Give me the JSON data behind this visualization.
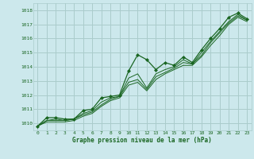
{
  "title": "Graphe pression niveau de la mer (hPa)",
  "bg_color": "#cce8ec",
  "grid_color": "#aacccc",
  "line_color": "#1a6622",
  "marker_color": "#1a6622",
  "text_color": "#1a6622",
  "xlim": [
    -0.5,
    23.5
  ],
  "ylim": [
    1009.5,
    1018.5
  ],
  "xticks": [
    0,
    1,
    2,
    3,
    4,
    5,
    6,
    7,
    8,
    9,
    10,
    11,
    12,
    13,
    14,
    15,
    16,
    17,
    18,
    19,
    20,
    21,
    22,
    23
  ],
  "yticks": [
    1010,
    1011,
    1012,
    1013,
    1014,
    1015,
    1016,
    1017,
    1018
  ],
  "series": [
    [
      1009.8,
      1010.4,
      1010.4,
      1010.3,
      1010.3,
      1010.9,
      1011.0,
      1011.8,
      1011.9,
      1012.0,
      1013.7,
      1014.85,
      1014.5,
      1013.8,
      1014.3,
      1014.1,
      1014.7,
      1014.3,
      1015.2,
      1016.0,
      1016.7,
      1017.5,
      1017.8,
      1017.4
    ],
    [
      1009.8,
      1010.2,
      1010.3,
      1010.2,
      1010.3,
      1010.7,
      1010.9,
      1011.5,
      1011.8,
      1011.9,
      1013.2,
      1013.5,
      1012.5,
      1013.5,
      1013.8,
      1014.0,
      1014.5,
      1014.2,
      1015.0,
      1015.8,
      1016.5,
      1017.2,
      1017.7,
      1017.3
    ],
    [
      1009.8,
      1010.2,
      1010.2,
      1010.2,
      1010.3,
      1010.6,
      1010.8,
      1011.3,
      1011.7,
      1011.9,
      1012.9,
      1013.1,
      1012.4,
      1013.3,
      1013.6,
      1013.9,
      1014.3,
      1014.2,
      1014.8,
      1015.7,
      1016.4,
      1017.1,
      1017.6,
      1017.3
    ],
    [
      1009.8,
      1010.1,
      1010.1,
      1010.1,
      1010.2,
      1010.5,
      1010.7,
      1011.2,
      1011.6,
      1011.8,
      1012.7,
      1012.9,
      1012.3,
      1013.1,
      1013.5,
      1013.8,
      1014.1,
      1014.1,
      1014.7,
      1015.5,
      1016.2,
      1017.0,
      1017.5,
      1017.2
    ]
  ]
}
